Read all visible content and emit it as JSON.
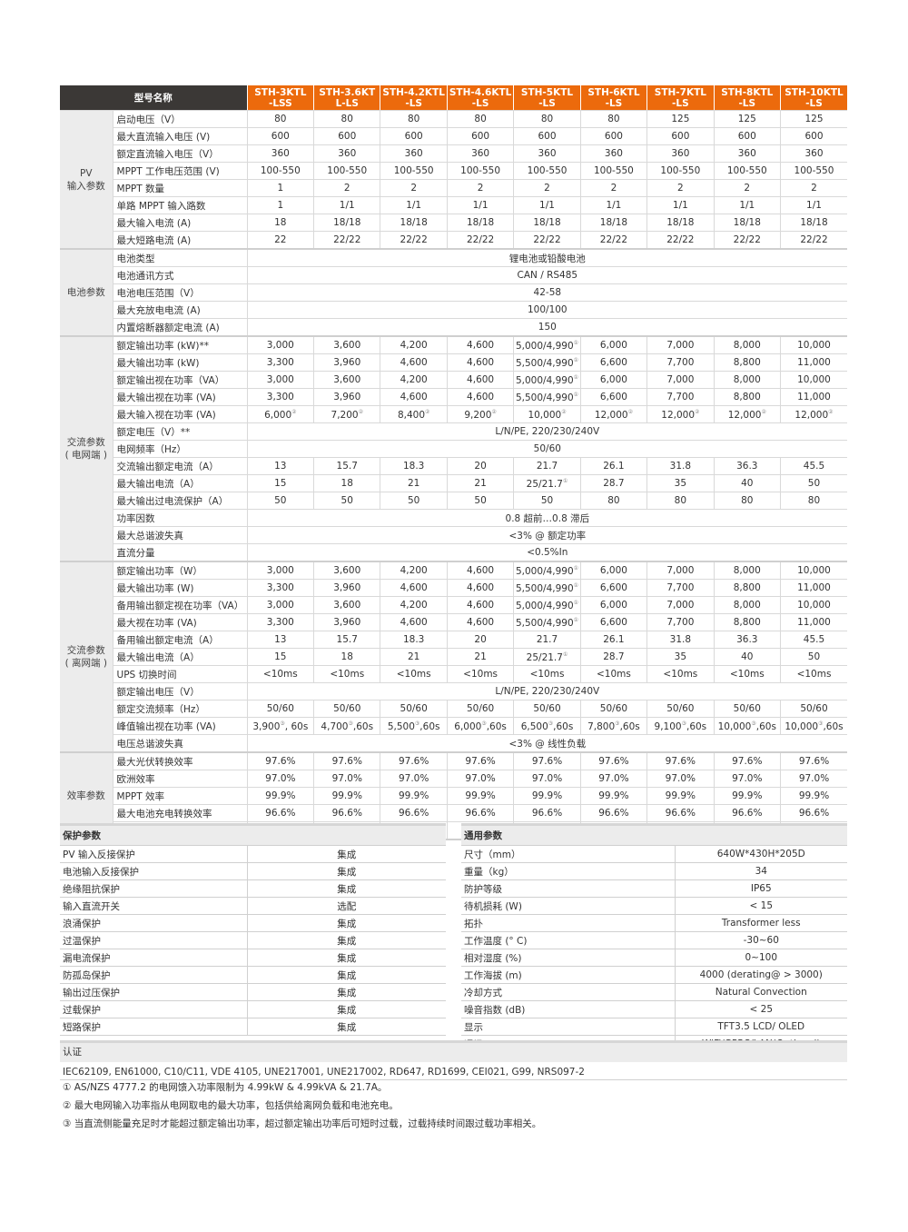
{
  "header": {
    "title": "型号名称",
    "models": [
      "STH-3KTL\n-LSS",
      "STH-3.6KT\nL-LS",
      "STH-4.2KTL\n-LS",
      "STH-4.6KTL\n-LS",
      "STH-5KTL\n-LS",
      "STH-6KTL\n-LS",
      "STH-7KTL\n-LS",
      "STH-8KTL\n-LS",
      "STH-10KTL\n-LS"
    ]
  },
  "sections": [
    {
      "name": "PV\n输入参数",
      "rows": [
        {
          "label": "启动电压（V）",
          "values": [
            "80",
            "80",
            "80",
            "80",
            "80",
            "80",
            "125",
            "125",
            "125"
          ]
        },
        {
          "label": "最大直流输入电压 (V)",
          "values": [
            "600",
            "600",
            "600",
            "600",
            "600",
            "600",
            "600",
            "600",
            "600"
          ]
        },
        {
          "label": "额定直流输入电压（V）",
          "values": [
            "360",
            "360",
            "360",
            "360",
            "360",
            "360",
            "360",
            "360",
            "360"
          ]
        },
        {
          "label": "MPPT 工作电压范围 (V)",
          "values": [
            "100-550",
            "100-550",
            "100-550",
            "100-550",
            "100-550",
            "100-550",
            "100-550",
            "100-550",
            "100-550"
          ]
        },
        {
          "label": "MPPT 数量",
          "values": [
            "1",
            "2",
            "2",
            "2",
            "2",
            "2",
            "2",
            "2",
            "2"
          ]
        },
        {
          "label": "单路 MPPT 输入路数",
          "values": [
            "1",
            "1/1",
            "1/1",
            "1/1",
            "1/1",
            "1/1",
            "1/1",
            "1/1",
            "1/1"
          ]
        },
        {
          "label": "最大输入电流 (A)",
          "values": [
            "18",
            "18/18",
            "18/18",
            "18/18",
            "18/18",
            "18/18",
            "18/18",
            "18/18",
            "18/18"
          ]
        },
        {
          "label": "最大短路电流 (A)",
          "values": [
            "22",
            "22/22",
            "22/22",
            "22/22",
            "22/22",
            "22/22",
            "22/22",
            "22/22",
            "22/22"
          ]
        }
      ]
    },
    {
      "name": "电池参数",
      "rows": [
        {
          "label": "电池类型",
          "span": "锂电池或铅酸电池"
        },
        {
          "label": "电池通讯方式",
          "span": "CAN / RS485"
        },
        {
          "label": "电池电压范围（V）",
          "span": "42-58"
        },
        {
          "label": "最大充放电电流 (A)",
          "span": "100/100"
        },
        {
          "label": "内置熔断器额定电流 (A)",
          "span": "150"
        }
      ]
    },
    {
      "name": "交流参数\n( 电网端 )",
      "rows": [
        {
          "label": "额定输出功率 (kW)**",
          "values": [
            "3,000",
            "3,600",
            "4,200",
            "4,600",
            "5,000/4,990①",
            "6,000",
            "7,000",
            "8,000",
            "10,000"
          ]
        },
        {
          "label": "最大输出功率 (kW)",
          "values": [
            "3,300",
            "3,960",
            "4,600",
            "4,600",
            "5,500/4,990①",
            "6,600",
            "7,700",
            "8,800",
            "11,000"
          ]
        },
        {
          "label": "额定输出视在功率（VA）",
          "values": [
            "3,000",
            "3,600",
            "4,200",
            "4,600",
            "5,000/4,990①",
            "6,000",
            "7,000",
            "8,000",
            "10,000"
          ]
        },
        {
          "label": "最大输出视在功率 (VA)",
          "values": [
            "3,300",
            "3,960",
            "4,600",
            "4,600",
            "5,500/4,990①",
            "6,600",
            "7,700",
            "8,800",
            "11,000"
          ]
        },
        {
          "label": "最大输入视在功率 (VA)",
          "values": [
            "6,000②",
            "7,200②",
            "8,400②",
            "9,200②",
            "10,000②",
            "12,000②",
            "12,000②",
            "12,000②",
            "12,000②"
          ]
        },
        {
          "label": "额定电压（V）**",
          "span": "L/N/PE, 220/230/240V"
        },
        {
          "label": "电网频率（Hz）",
          "span": "50/60"
        },
        {
          "label": "交流输出额定电流（A）",
          "values": [
            "13",
            "15.7",
            "18.3",
            "20",
            "21.7",
            "26.1",
            "31.8",
            "36.3",
            "45.5"
          ]
        },
        {
          "label": "最大输出电流（A）",
          "values": [
            "15",
            "18",
            "21",
            "21",
            "25/21.7①",
            "28.7",
            "35",
            "40",
            "50"
          ]
        },
        {
          "label": "最大输出过电流保护（A）",
          "values": [
            "50",
            "50",
            "50",
            "50",
            "50",
            "80",
            "80",
            "80",
            "80"
          ]
        },
        {
          "label": "功率因数",
          "span": "0.8 超前…0.8 滞后"
        },
        {
          "label": "最大总谐波失真",
          "span": "<3% @ 额定功率"
        },
        {
          "label": "直流分量",
          "span": "<0.5%In"
        }
      ]
    },
    {
      "name": "交流参数\n( 离网端 )",
      "rows": [
        {
          "label": "额定输出功率（W）",
          "values": [
            "3,000",
            "3,600",
            "4,200",
            "4,600",
            "5,000/4,990①",
            "6,000",
            "7,000",
            "8,000",
            "10,000"
          ]
        },
        {
          "label": "最大输出功率 (W)",
          "values": [
            "3,300",
            "3,960",
            "4,600",
            "4,600",
            "5,500/4,990①",
            "6,600",
            "7,700",
            "8,800",
            "11,000"
          ]
        },
        {
          "label": "备用输出额定视在功率（VA）",
          "values": [
            "3,000",
            "3,600",
            "4,200",
            "4,600",
            "5,000/4,990①",
            "6,000",
            "7,000",
            "8,000",
            "10,000"
          ]
        },
        {
          "label": "最大视在功率 (VA)",
          "values": [
            "3,300",
            "3,960",
            "4,600",
            "4,600",
            "5,500/4,990①",
            "6,600",
            "7,700",
            "8,800",
            "11,000"
          ]
        },
        {
          "label": "备用输出额定电流（A）",
          "values": [
            "13",
            "15.7",
            "18.3",
            "20",
            "21.7",
            "26.1",
            "31.8",
            "36.3",
            "45.5"
          ]
        },
        {
          "label": "最大输出电流（A）",
          "values": [
            "15",
            "18",
            "21",
            "21",
            "25/21.7①",
            "28.7",
            "35",
            "40",
            "50"
          ]
        },
        {
          "label": "UPS 切换时间",
          "values": [
            "<10ms",
            "<10ms",
            "<10ms",
            "<10ms",
            "<10ms",
            "<10ms",
            "<10ms",
            "<10ms",
            "<10ms"
          ]
        },
        {
          "label": "额定输出电压（V）",
          "span": "L/N/PE, 220/230/240V"
        },
        {
          "label": "额定交流频率（Hz）",
          "values": [
            "50/60",
            "50/60",
            "50/60",
            "50/60",
            "50/60",
            "50/60",
            "50/60",
            "50/60",
            "50/60"
          ]
        },
        {
          "label": "峰值输出视在功率 (VA)",
          "values": [
            "3,900③, 60s",
            "4,700③,60s",
            "5,500③,60s",
            "6,000③,60s",
            "6,500③,60s",
            "7,800③,60s",
            "9,100③,60s",
            "10,000③,60s",
            "10,000③,60s"
          ]
        },
        {
          "label": "电压总谐波失真",
          "span": "<3% @ 线性负载"
        }
      ]
    },
    {
      "name": "效率参数",
      "rows": [
        {
          "label": "最大光伏转换效率",
          "values": [
            "97.6%",
            "97.6%",
            "97.6%",
            "97.6%",
            "97.6%",
            "97.6%",
            "97.6%",
            "97.6%",
            "97.6%"
          ]
        },
        {
          "label": "欧洲效率",
          "values": [
            "97.0%",
            "97.0%",
            "97.0%",
            "97.0%",
            "97.0%",
            "97.0%",
            "97.0%",
            "97.0%",
            "97.0%"
          ]
        },
        {
          "label": "MPPT 效率",
          "values": [
            "99.9%",
            "99.9%",
            "99.9%",
            "99.9%",
            "99.9%",
            "99.9%",
            "99.9%",
            "99.9%",
            "99.9%"
          ]
        },
        {
          "label": "最大电池充电转换效率",
          "values": [
            "96.6%",
            "96.6%",
            "96.6%",
            "96.6%",
            "96.6%",
            "96.6%",
            "96.6%",
            "96.6%",
            "96.6%"
          ]
        },
        {
          "label": "最大电池放电转换效率",
          "values": [
            "96.6%",
            "96.6%",
            "96.6%",
            "96.6%",
            "96.6%",
            "96.6%",
            "96.6%",
            "96.6%",
            "96.6%"
          ]
        }
      ]
    }
  ],
  "protection": {
    "title": "保护参数",
    "rows": [
      [
        "PV 输入反接保护",
        "集成"
      ],
      [
        "电池输入反接保护",
        "集成"
      ],
      [
        "绝缘阻抗保护",
        "集成"
      ],
      [
        "输入直流开关",
        "选配"
      ],
      [
        "浪涌保护",
        "集成"
      ],
      [
        "过温保护",
        "集成"
      ],
      [
        "漏电流保护",
        "集成"
      ],
      [
        "防孤岛保护",
        "集成"
      ],
      [
        "输出过压保护",
        "集成"
      ],
      [
        "过载保护",
        "集成"
      ],
      [
        "短路保护",
        "集成"
      ]
    ]
  },
  "general": {
    "title": "通用参数",
    "rows": [
      [
        "尺寸（mm）",
        "640W*430H*205D"
      ],
      [
        "重量（kg）",
        "34"
      ],
      [
        "防护等级",
        "IP65"
      ],
      [
        "待机损耗 (W)",
        "< 15"
      ],
      [
        "拓扑",
        "Transformer less"
      ],
      [
        "工作温度 (° C)",
        "-30~60"
      ],
      [
        "相对湿度 (%)",
        "0~100"
      ],
      [
        "工作海拔 (m)",
        "4000 (derating@ > 3000)"
      ],
      [
        "冷却方式",
        "Natural Convection"
      ],
      [
        "噪音指数 (dB)",
        "< 25"
      ],
      [
        "显示",
        "TFT3.5  LCD/ OLED"
      ],
      [
        "通讯",
        "WiFi/GPRS/LAN(Optional)"
      ]
    ]
  },
  "certification": {
    "title": "认证",
    "text": "IEC62109, EN61000, C10/C11,  VDE 4105, UNE217001, UNE217002, RD647, RD1699, CEI021, G99, NRS097-2"
  },
  "footnotes": [
    "① AS/NZS 4777.2 的电网馈入功率限制为 4.99kW & 4.99kVA & 21.7A。",
    "② 最大电网输入功率指从电网取电的最大功率，包括供给离网负载和电池充电。",
    "③ 当直流侧能量充足时才能超过额定输出功率，超过额定输出功率后可短时过载，过载持续时间跟过载功率相关。"
  ],
  "colors": {
    "header_orange": "#ec6a0c",
    "header_dark": "#3b3836",
    "category_bg": "#ececec"
  }
}
